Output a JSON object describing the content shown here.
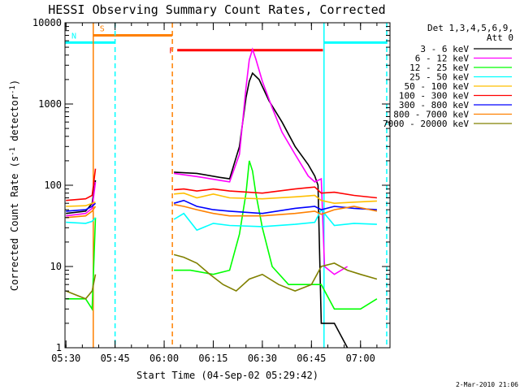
{
  "chart_data": {
    "type": "line",
    "title": "HESSI Observing Summary Count Rates, Corrected",
    "xlabel": "Start Time (04-Sep-02 05:29:42)",
    "ylabel": "Corrected Count Rate (s⁻¹ detector⁻¹)",
    "x_scale": "time",
    "xlim": [
      "05:29:42",
      "07:09:00"
    ],
    "x_ticks": [
      "05:30",
      "05:45",
      "06:00",
      "06:15",
      "06:30",
      "06:45",
      "07:00"
    ],
    "y_scale": "log",
    "ylim": [
      1,
      10000
    ],
    "y_ticks": [
      "1",
      "10",
      "100",
      "1000",
      "10000"
    ],
    "legend": {
      "position": "right",
      "header": [
        "Det 1,3,4,5,6,9,",
        "Att 0"
      ]
    },
    "series": [
      {
        "name": "3 - 6 keV",
        "color": "#000000",
        "x": [
          "05:30",
          "05:36",
          "05:38",
          "05:39",
          "06:02",
          "06:03",
          "06:10",
          "06:17",
          "06:20",
          "06:23",
          "06:25",
          "06:26",
          "06:27",
          "06:29",
          "06:32",
          "06:36",
          "06:40",
          "06:44",
          "06:46",
          "06:47",
          "06:48",
          "06:49",
          "06:52",
          "06:56"
        ],
        "y": [
          45,
          48,
          60,
          115,
          null,
          145,
          140,
          125,
          120,
          300,
          1200,
          1900,
          2400,
          2000,
          1100,
          600,
          300,
          180,
          130,
          100,
          2,
          2,
          2,
          1
        ]
      },
      {
        "name": "6 - 12 keV",
        "color": "#ff00ff",
        "x": [
          "05:30",
          "05:36",
          "05:38",
          "05:39",
          "06:02",
          "06:03",
          "06:10",
          "06:17",
          "06:20",
          "06:23",
          "06:25",
          "06:26",
          "06:27",
          "06:28",
          "06:30",
          "06:33",
          "06:36",
          "06:40",
          "06:44",
          "06:46",
          "06:48",
          "06:49",
          "06:52",
          "06:56"
        ],
        "y": [
          42,
          45,
          52,
          110,
          null,
          140,
          128,
          115,
          110,
          240,
          1600,
          3500,
          4700,
          3600,
          1900,
          900,
          450,
          240,
          130,
          110,
          120,
          10,
          8,
          10
        ]
      },
      {
        "name": "12 - 25 keV",
        "color": "#00ff00",
        "x": [
          "05:30",
          "05:36",
          "05:38",
          "05:39",
          "06:02",
          "06:03",
          "06:08",
          "06:15",
          "06:20",
          "06:23",
          "06:25",
          "06:26",
          "06:27",
          "06:28",
          "06:30",
          "06:33",
          "06:38",
          "06:44",
          "06:48",
          "06:52",
          "06:58",
          "07:00",
          "07:05"
        ],
        "y": [
          4,
          4,
          3,
          40,
          null,
          9,
          9,
          8,
          9,
          25,
          80,
          200,
          150,
          80,
          30,
          10,
          6,
          6,
          6,
          3,
          3,
          3,
          4
        ]
      },
      {
        "name": "25 - 50 keV",
        "color": "#00ffff",
        "x": [
          "05:30",
          "05:36",
          "05:38",
          "05:39",
          "06:02",
          "06:03",
          "06:06",
          "06:10",
          "06:15",
          "06:20",
          "06:30",
          "06:40",
          "06:46",
          "06:48",
          "06:52",
          "06:58",
          "07:05"
        ],
        "y": [
          35,
          34,
          36,
          40,
          null,
          38,
          45,
          28,
          34,
          32,
          31,
          33,
          35,
          50,
          32,
          34,
          33
        ]
      },
      {
        "name": "50 - 100 keV",
        "color": "#ffbf00",
        "x": [
          "05:30",
          "05:36",
          "05:38",
          "05:39",
          "06:02",
          "06:03",
          "06:06",
          "06:10",
          "06:15",
          "06:20",
          "06:30",
          "06:40",
          "06:46",
          "06:48",
          "06:52",
          "06:58",
          "07:05"
        ],
        "y": [
          55,
          56,
          60,
          62,
          null,
          78,
          80,
          70,
          78,
          70,
          68,
          72,
          75,
          65,
          60,
          62,
          64
        ]
      },
      {
        "name": "100 - 300 keV",
        "color": "#ff0000",
        "x": [
          "05:30",
          "05:36",
          "05:38",
          "05:39",
          "06:02",
          "06:03",
          "06:06",
          "06:10",
          "06:15",
          "06:20",
          "06:30",
          "06:40",
          "06:46",
          "06:48",
          "06:52",
          "06:58",
          "07:05"
        ],
        "y": [
          65,
          68,
          75,
          160,
          null,
          88,
          90,
          85,
          90,
          85,
          80,
          90,
          95,
          80,
          82,
          75,
          70
        ]
      },
      {
        "name": "300 - 800 keV",
        "color": "#0000ff",
        "x": [
          "05:30",
          "05:36",
          "05:38",
          "05:39",
          "06:02",
          "06:03",
          "06:06",
          "06:10",
          "06:15",
          "06:20",
          "06:30",
          "06:40",
          "06:46",
          "06:48",
          "06:52",
          "06:58",
          "07:05"
        ],
        "y": [
          48,
          50,
          55,
          60,
          null,
          60,
          65,
          55,
          50,
          48,
          45,
          52,
          55,
          50,
          55,
          52,
          50
        ]
      },
      {
        "name": "800 - 7000 keV",
        "color": "#ff8000",
        "x": [
          "05:30",
          "05:36",
          "05:38",
          "05:39",
          "06:02",
          "06:03",
          "06:06",
          "06:10",
          "06:15",
          "06:20",
          "06:30",
          "06:40",
          "06:46",
          "06:48",
          "06:52",
          "06:58",
          "07:05"
        ],
        "y": [
          40,
          42,
          48,
          55,
          null,
          58,
          55,
          50,
          45,
          42,
          42,
          45,
          48,
          44,
          50,
          55,
          48
        ]
      },
      {
        "name": "7000 - 20000 keV",
        "color": "#808000",
        "x": [
          "05:30",
          "05:36",
          "05:38",
          "05:39",
          "06:02",
          "06:03",
          "06:06",
          "06:10",
          "06:14",
          "06:18",
          "06:22",
          "06:26",
          "06:30",
          "06:35",
          "06:40",
          "06:45",
          "06:48",
          "06:52",
          "06:56",
          "07:00",
          "07:05"
        ],
        "y": [
          5,
          4,
          5,
          8,
          null,
          14,
          13,
          11,
          8,
          6,
          5,
          7,
          8,
          6,
          5,
          6,
          10,
          11,
          9,
          8,
          7
        ]
      }
    ],
    "bars": [
      {
        "label": "S",
        "color": "#ff8000",
        "x": [
          "05:38:20",
          "06:02:30"
        ],
        "y": 7000
      },
      {
        "label": "N",
        "color": "#00ffff",
        "x": [
          "05:29:42",
          "05:45:00"
        ],
        "y": 5700
      },
      {
        "label": "",
        "color": "#00ffff",
        "x": [
          "06:48:50",
          "07:08:00"
        ],
        "y": 5700
      },
      {
        "label": "F",
        "color": "#ff0000",
        "x": [
          "06:04:00",
          "06:48:30"
        ],
        "y": 4600
      }
    ],
    "vlines": [
      {
        "x": "05:38:20",
        "color": "#ff8000",
        "style": "solid"
      },
      {
        "x": "05:45:00",
        "color": "#00ffff",
        "style": "dashed"
      },
      {
        "x": "06:02:30",
        "color": "#ff8000",
        "style": "dashed"
      },
      {
        "x": "06:48:50",
        "color": "#00ffff",
        "style": "solid"
      },
      {
        "x": "07:08:00",
        "color": "#00ffff",
        "style": "dashed"
      }
    ],
    "timestamp": "2-Mar-2010 21:06"
  }
}
